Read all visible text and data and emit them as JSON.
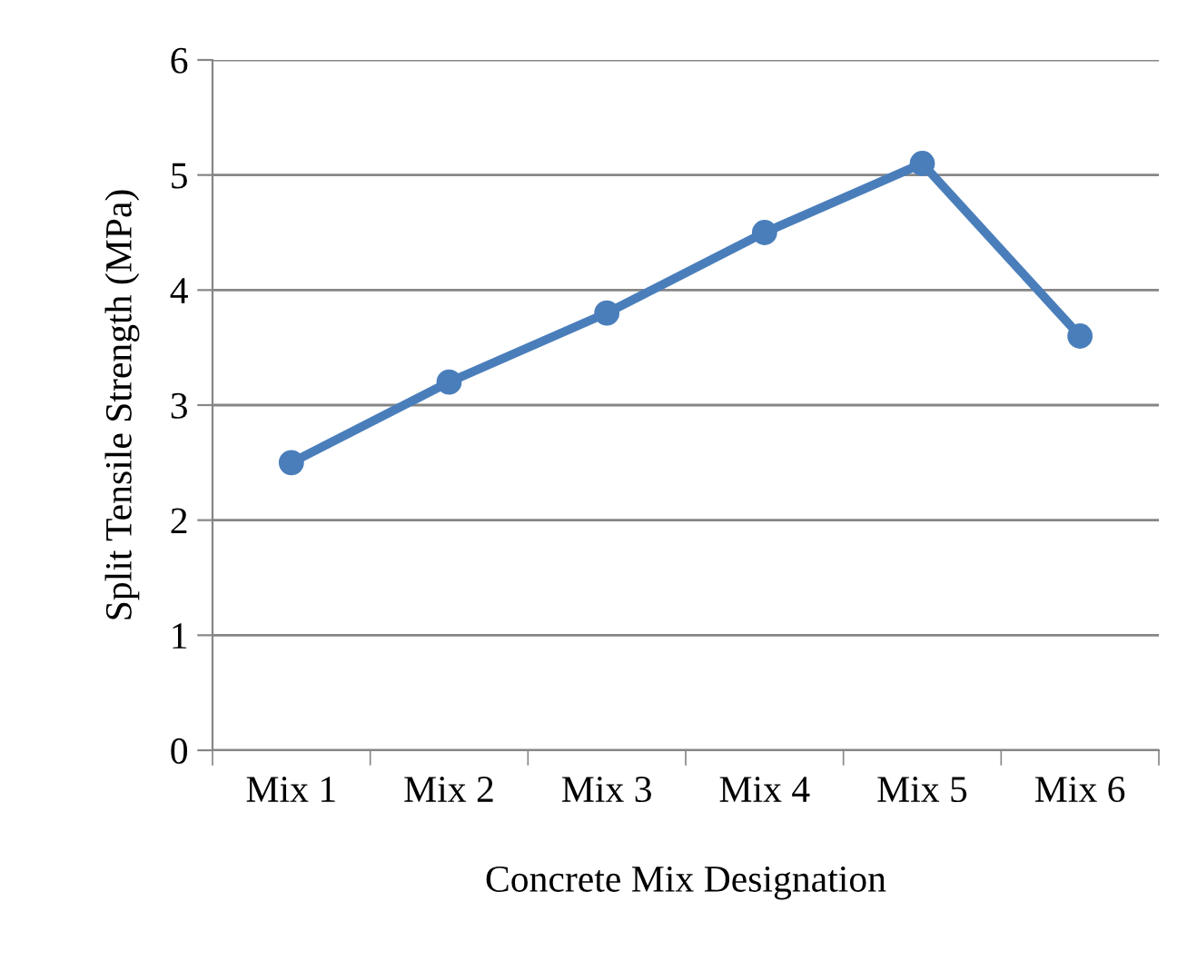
{
  "chart_data": {
    "type": "line",
    "xlabel": "Concrete Mix Designation",
    "ylabel": "Split Tensile Strength (MPa)",
    "categories": [
      "Mix 1",
      "Mix 2",
      "Mix 3",
      "Mix 4",
      "Mix 5",
      "Mix 6"
    ],
    "series": [
      {
        "color": "#4a7ebb",
        "values": [
          2.5,
          3.2,
          3.8,
          4.5,
          5.1,
          3.6
        ]
      }
    ],
    "ylim": [
      0,
      6
    ],
    "yticks": [
      0,
      1,
      2,
      3,
      4,
      5,
      6
    ],
    "grid": "y",
    "marker": "circle",
    "line_style": "solid",
    "legend": false
  }
}
